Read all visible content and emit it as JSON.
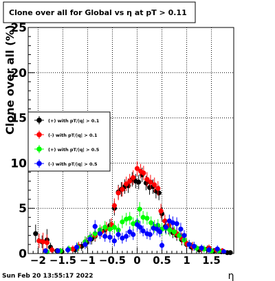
{
  "title": "Clone  over all for Global vs   η at pT > 0.11",
  "footer_timestamp": "Sun Feb 20 13:55:17 2022",
  "chart_data": {
    "type": "scatter",
    "xlabel": "η",
    "ylabel": "Clone  over all (%)",
    "xlim": [
      -2.2,
      1.95
    ],
    "ylim": [
      0,
      25
    ],
    "x_ticks": [
      -2,
      -1.5,
      -1,
      -0.5,
      0,
      0.5,
      1,
      1.5
    ],
    "x_tick_labels": [
      "−2",
      "−1.5",
      "−1",
      "−0.5",
      "0",
      "0.5",
      "1",
      "1.5"
    ],
    "y_ticks": [
      0,
      5,
      10,
      15,
      20,
      25
    ],
    "y_tick_labels": [
      "0",
      "5",
      "10",
      "15",
      "20",
      "25"
    ],
    "grid": true,
    "legend_position": "left-middle",
    "series": [
      {
        "name": "(+) with pT/|q| > 0.1",
        "color": "#000000",
        "points": [
          [
            -2.05,
            2.2,
            1.0
          ],
          [
            -1.92,
            1.3,
            0.7
          ],
          [
            -1.82,
            1.5,
            1.2
          ],
          [
            -1.75,
            0.7,
            0.5
          ],
          [
            -1.62,
            0.3,
            0.3
          ],
          [
            -1.52,
            0.2,
            0.3
          ],
          [
            -1.25,
            0.4,
            0.4
          ],
          [
            -1.12,
            0.8,
            0.5
          ],
          [
            -1.02,
            1.2,
            0.6
          ],
          [
            -0.92,
            1.6,
            0.6
          ],
          [
            -0.85,
            1.9,
            0.6
          ],
          [
            -0.75,
            2.3,
            0.6
          ],
          [
            -0.65,
            2.6,
            0.6
          ],
          [
            -0.55,
            3.1,
            0.7
          ],
          [
            -0.46,
            5.0,
            0.8
          ],
          [
            -0.38,
            6.8,
            0.8
          ],
          [
            -0.32,
            7.1,
            0.8
          ],
          [
            -0.25,
            7.4,
            0.8
          ],
          [
            -0.18,
            7.5,
            0.8
          ],
          [
            -0.1,
            8.2,
            0.8
          ],
          [
            -0.03,
            8.0,
            0.8
          ],
          [
            0.03,
            7.9,
            0.8
          ],
          [
            0.1,
            8.7,
            0.8
          ],
          [
            0.18,
            7.8,
            0.8
          ],
          [
            0.25,
            7.3,
            0.8
          ],
          [
            0.32,
            7.4,
            0.8
          ],
          [
            0.38,
            6.9,
            0.8
          ],
          [
            0.44,
            6.7,
            0.8
          ],
          [
            0.5,
            4.4,
            0.8
          ],
          [
            0.57,
            3.0,
            0.7
          ],
          [
            0.64,
            2.8,
            0.7
          ],
          [
            0.72,
            2.3,
            0.6
          ],
          [
            0.8,
            2.0,
            0.6
          ],
          [
            0.9,
            1.5,
            0.6
          ],
          [
            1.0,
            1.0,
            0.5
          ],
          [
            1.1,
            0.7,
            0.5
          ],
          [
            1.25,
            0.4,
            0.4
          ],
          [
            1.42,
            0.5,
            0.4
          ],
          [
            1.55,
            0.3,
            0.3
          ],
          [
            1.7,
            0.2,
            0.3
          ],
          [
            1.82,
            0.1,
            0.2
          ],
          [
            1.88,
            0.1,
            0.2
          ]
        ]
      },
      {
        "name": "(-) with pT/|q| > 0.1",
        "color": "#ff0000",
        "points": [
          [
            -1.98,
            1.4,
            0.8
          ],
          [
            -1.9,
            1.3,
            1.0
          ],
          [
            -1.82,
            1.2,
            0.9
          ],
          [
            -1.72,
            0.4,
            0.4
          ],
          [
            -1.55,
            0.3,
            0.3
          ],
          [
            -1.3,
            0.5,
            0.4
          ],
          [
            -1.18,
            0.8,
            0.5
          ],
          [
            -1.05,
            1.3,
            0.6
          ],
          [
            -0.95,
            1.7,
            0.6
          ],
          [
            -0.85,
            2.0,
            0.6
          ],
          [
            -0.72,
            2.4,
            0.6
          ],
          [
            -0.62,
            2.8,
            0.7
          ],
          [
            -0.52,
            3.2,
            0.7
          ],
          [
            -0.46,
            5.3,
            0.8
          ],
          [
            -0.38,
            6.7,
            0.8
          ],
          [
            -0.3,
            7.1,
            0.8
          ],
          [
            -0.22,
            7.7,
            0.8
          ],
          [
            -0.15,
            8.0,
            0.8
          ],
          [
            -0.08,
            8.4,
            0.8
          ],
          [
            0.0,
            9.4,
            0.8
          ],
          [
            0.07,
            9.1,
            0.8
          ],
          [
            0.13,
            8.9,
            0.8
          ],
          [
            0.2,
            8.2,
            0.8
          ],
          [
            0.27,
            7.9,
            0.8
          ],
          [
            0.35,
            7.6,
            0.8
          ],
          [
            0.42,
            7.2,
            0.8
          ],
          [
            0.48,
            4.7,
            0.8
          ],
          [
            0.56,
            3.6,
            0.7
          ],
          [
            0.64,
            3.1,
            0.7
          ],
          [
            0.72,
            2.6,
            0.6
          ],
          [
            0.8,
            2.2,
            0.6
          ],
          [
            0.9,
            1.7,
            0.6
          ],
          [
            1.0,
            1.1,
            0.5
          ],
          [
            1.12,
            0.8,
            0.5
          ],
          [
            1.3,
            0.5,
            0.4
          ],
          [
            1.45,
            0.6,
            0.4
          ],
          [
            1.6,
            0.4,
            0.3
          ],
          [
            1.72,
            0.3,
            0.3
          ]
        ]
      },
      {
        "name": "(+) with pT/|q| > 0.5",
        "color": "#00ff00",
        "points": [
          [
            -1.82,
            0.2,
            0.3
          ],
          [
            -1.55,
            0.3,
            0.3
          ],
          [
            -1.38,
            0.5,
            0.4
          ],
          [
            -1.2,
            0.7,
            0.5
          ],
          [
            -1.05,
            1.3,
            0.6
          ],
          [
            -0.95,
            1.8,
            0.6
          ],
          [
            -0.85,
            2.2,
            0.6
          ],
          [
            -0.75,
            2.6,
            0.6
          ],
          [
            -0.65,
            2.9,
            0.7
          ],
          [
            -0.55,
            2.7,
            0.7
          ],
          [
            -0.46,
            2.9,
            0.7
          ],
          [
            -0.38,
            2.6,
            0.7
          ],
          [
            -0.3,
            3.5,
            0.7
          ],
          [
            -0.22,
            3.8,
            0.7
          ],
          [
            -0.15,
            3.9,
            0.7
          ],
          [
            -0.08,
            3.3,
            0.7
          ],
          [
            0.0,
            3.5,
            0.7
          ],
          [
            0.05,
            4.9,
            0.8
          ],
          [
            0.12,
            4.0,
            0.7
          ],
          [
            0.2,
            3.9,
            0.7
          ],
          [
            0.28,
            3.4,
            0.7
          ],
          [
            0.35,
            3.0,
            0.7
          ],
          [
            0.42,
            3.1,
            0.7
          ],
          [
            0.5,
            2.7,
            0.7
          ],
          [
            0.58,
            2.8,
            0.7
          ],
          [
            0.66,
            2.6,
            0.7
          ],
          [
            0.75,
            2.4,
            0.6
          ],
          [
            0.85,
            2.0,
            0.6
          ],
          [
            0.95,
            1.5,
            0.6
          ],
          [
            1.05,
            1.0,
            0.5
          ],
          [
            1.2,
            0.6,
            0.4
          ],
          [
            1.35,
            0.5,
            0.4
          ],
          [
            1.5,
            0.3,
            0.3
          ],
          [
            1.65,
            0.3,
            0.3
          ]
        ]
      },
      {
        "name": "(-) with pT/|q| > 0.5",
        "color": "#0000ff",
        "points": [
          [
            -1.85,
            0.3,
            0.3
          ],
          [
            -1.6,
            0.3,
            0.3
          ],
          [
            -1.4,
            0.4,
            0.4
          ],
          [
            -1.22,
            0.7,
            0.5
          ],
          [
            -1.05,
            1.0,
            0.5
          ],
          [
            -0.95,
            1.6,
            0.6
          ],
          [
            -0.85,
            3.0,
            0.7
          ],
          [
            -0.75,
            2.2,
            0.6
          ],
          [
            -0.65,
            1.9,
            0.6
          ],
          [
            -0.55,
            1.8,
            0.6
          ],
          [
            -0.46,
            1.4,
            0.6
          ],
          [
            -0.38,
            2.1,
            0.6
          ],
          [
            -0.3,
            1.7,
            0.6
          ],
          [
            -0.22,
            1.9,
            0.6
          ],
          [
            -0.15,
            2.4,
            0.6
          ],
          [
            -0.08,
            2.1,
            0.6
          ],
          [
            0.0,
            3.2,
            0.7
          ],
          [
            0.06,
            2.9,
            0.7
          ],
          [
            0.12,
            2.5,
            0.6
          ],
          [
            0.2,
            2.2,
            0.6
          ],
          [
            0.26,
            2.1,
            0.6
          ],
          [
            0.33,
            2.8,
            0.7
          ],
          [
            0.4,
            2.7,
            0.7
          ],
          [
            0.46,
            2.4,
            0.6
          ],
          [
            0.5,
            0.9,
            0.5
          ],
          [
            0.58,
            2.9,
            0.7
          ],
          [
            0.65,
            3.6,
            0.7
          ],
          [
            0.72,
            3.4,
            0.7
          ],
          [
            0.8,
            3.3,
            0.7
          ],
          [
            0.88,
            2.7,
            0.7
          ],
          [
            0.95,
            2.0,
            0.6
          ],
          [
            1.05,
            1.0,
            0.5
          ],
          [
            1.15,
            0.8,
            0.5
          ],
          [
            1.3,
            0.6,
            0.4
          ],
          [
            1.45,
            0.4,
            0.4
          ],
          [
            1.62,
            0.5,
            0.4
          ],
          [
            1.75,
            0.2,
            0.3
          ]
        ]
      }
    ]
  }
}
